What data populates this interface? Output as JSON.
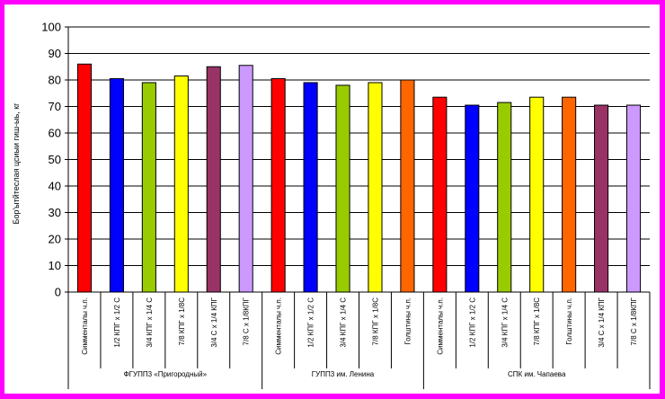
{
  "chart_data": {
    "type": "bar",
    "ylabel": "Бор'ытйтеслая цсиыи гиш-ыь, кг",
    "ylim": [
      0,
      100
    ],
    "yticks": [
      0,
      10,
      20,
      30,
      40,
      50,
      60,
      70,
      80,
      90,
      100
    ],
    "grid": true,
    "groups": [
      {
        "label": "ФГУПП3 «Пригородный»",
        "bars": [
          {
            "category": "Симменталы ч.п.",
            "value": 86,
            "color": "#ff0000"
          },
          {
            "category": "1/2 КПГ х 1/2 С",
            "value": 80.5,
            "color": "#0000ff"
          },
          {
            "category": "3/4 КПГ х 1/4 С",
            "value": 79,
            "color": "#99cc00"
          },
          {
            "category": "7/8 КПГ х 1/8С",
            "value": 81.5,
            "color": "#ffff00"
          },
          {
            "category": "3/4 С х 1/4 КПГ",
            "value": 85,
            "color": "#993366"
          },
          {
            "category": "7/8 С х 1/8КПГ",
            "value": 85.5,
            "color": "#cc99ff"
          }
        ]
      },
      {
        "label": "ГУПП3 им. Ленина",
        "bars": [
          {
            "category": "Симменталы ч.п.",
            "value": 80.5,
            "color": "#ff0000"
          },
          {
            "category": "1/2 КПГ х 1/2 С",
            "value": 79,
            "color": "#0000ff"
          },
          {
            "category": "3/4 КПГ х 1/4 С",
            "value": 78,
            "color": "#99cc00"
          },
          {
            "category": "7/8 КПГ х 1/8С",
            "value": 79,
            "color": "#ffff00"
          },
          {
            "category": "Голштины ч.п.",
            "value": 80,
            "color": "#ff6600"
          }
        ]
      },
      {
        "label": "СПК им. Чапаева",
        "bars": [
          {
            "category": "Симменталы ч.п.",
            "value": 73.5,
            "color": "#ff0000"
          },
          {
            "category": "1/2 КПГ х 1/2 С",
            "value": 70.5,
            "color": "#0000ff"
          },
          {
            "category": "3/4 КПГ х 1/4 С",
            "value": 71.5,
            "color": "#99cc00"
          },
          {
            "category": "7/8 КПГ х 1/8С",
            "value": 73.5,
            "color": "#ffff00"
          },
          {
            "category": "Голштины ч.п.",
            "value": 73.5,
            "color": "#ff6600"
          },
          {
            "category": "3/4 С х 1/4 КПГ",
            "value": 70.5,
            "color": "#993366"
          },
          {
            "category": "7/8 С х 1/8КПГ",
            "value": 70.5,
            "color": "#cc99ff"
          }
        ]
      }
    ]
  },
  "colors": {
    "border": "#ff00ff",
    "background": "#ffffff"
  }
}
